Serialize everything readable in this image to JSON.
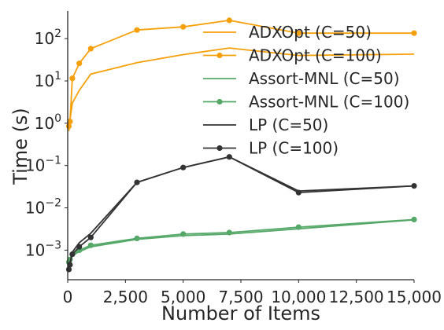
{
  "chart_data": {
    "type": "line",
    "title": "",
    "xlabel": "Number of Items",
    "ylabel": "Time (s)",
    "yscale": "log",
    "xlim": [
      0,
      15000
    ],
    "ylim": [
      0.0002,
      450
    ],
    "xticks": [
      0,
      2500,
      5000,
      7500,
      10000,
      12500,
      15000
    ],
    "xtick_labels": [
      "0",
      "2,500",
      "5,000",
      "7,500",
      "10,000",
      "12,500",
      "15,000"
    ],
    "yticks": [
      0.001,
      0.01,
      0.1,
      1,
      10,
      100
    ],
    "ytick_labels": [
      {
        "base": "10",
        "exp": "−3"
      },
      {
        "base": "10",
        "exp": "−2"
      },
      {
        "base": "10",
        "exp": "−1"
      },
      {
        "base": "10",
        "exp": "0"
      },
      {
        "base": "10",
        "exp": "1"
      },
      {
        "base": "10",
        "exp": "2"
      }
    ],
    "grid": false,
    "legend_position": "upper-right",
    "series": [
      {
        "name": "ADXOpt (C=50)",
        "color": "#f5a00a",
        "marker": "none",
        "x": [
          50,
          100,
          200,
          500,
          1000,
          3000,
          5000,
          7000,
          10000,
          15000
        ],
        "y": [
          0.65,
          1.2,
          3.0,
          6.0,
          14.5,
          27,
          42,
          60,
          40,
          43
        ]
      },
      {
        "name": "ADXOpt (C=100)",
        "color": "#f5a00a",
        "marker": "circle",
        "x": [
          50,
          100,
          200,
          500,
          1000,
          3000,
          5000,
          7000,
          10000,
          15000
        ],
        "y": [
          0.85,
          1.1,
          11.5,
          26,
          58,
          160,
          190,
          270,
          135,
          135
        ]
      },
      {
        "name": "Assort-MNL (C=50)",
        "color": "#55a868",
        "marker": "none",
        "x": [
          50,
          100,
          200,
          500,
          1000,
          3000,
          5000,
          7000,
          10000,
          15000
        ],
        "y": [
          0.0005,
          0.00058,
          0.00075,
          0.00092,
          0.0012,
          0.0018,
          0.0022,
          0.0024,
          0.0032,
          0.0052
        ]
      },
      {
        "name": "Assort-MNL (C=100)",
        "color": "#55a868",
        "marker": "circle",
        "x": [
          50,
          100,
          200,
          500,
          1000,
          3000,
          5000,
          7000,
          10000,
          15000
        ],
        "y": [
          0.00052,
          0.0006,
          0.0008,
          0.001,
          0.0013,
          0.0019,
          0.0024,
          0.0026,
          0.0035,
          0.0053
        ]
      },
      {
        "name": "LP (C=50)",
        "color": "#333333",
        "marker": "none",
        "x": [
          50,
          100,
          200,
          500,
          1000,
          3000,
          5000,
          7000,
          10000,
          15000
        ],
        "y": [
          0.0004,
          0.0005,
          0.0009,
          0.0015,
          0.0025,
          0.04,
          0.09,
          0.16,
          0.025,
          0.033
        ]
      },
      {
        "name": "LP (C=100)",
        "color": "#333333",
        "marker": "circle",
        "x": [
          50,
          100,
          200,
          500,
          1000,
          3000,
          5000,
          7000,
          10000,
          15000
        ],
        "y": [
          0.00035,
          0.00045,
          0.0008,
          0.0012,
          0.002,
          0.04,
          0.09,
          0.16,
          0.023,
          0.033
        ]
      }
    ]
  }
}
